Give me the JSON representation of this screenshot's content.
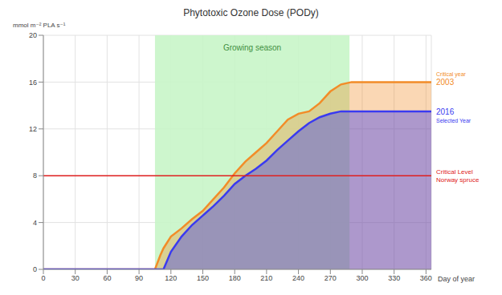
{
  "chart_data": {
    "type": "area",
    "title": "Phytotoxic Ozone Dose (PODy)",
    "y_label": "mmol m⁻² PLA s⁻¹",
    "x_label": "Day of year",
    "x": [
      0,
      100,
      105,
      110,
      113,
      120,
      130,
      140,
      150,
      160,
      170,
      180,
      190,
      200,
      210,
      220,
      230,
      240,
      250,
      260,
      270,
      280,
      290,
      365
    ],
    "series": [
      {
        "name": "2003",
        "label": "Critical year",
        "color": "#f28c28",
        "values": [
          0,
          0,
          0,
          1.2,
          1.8,
          2.8,
          3.5,
          4.3,
          5,
          6,
          7,
          8.2,
          9.2,
          10,
          10.8,
          11.8,
          12.8,
          13.3,
          13.5,
          14.2,
          15.2,
          15.8,
          16,
          16
        ]
      },
      {
        "name": "2016",
        "label": "Selected Year",
        "color": "#3a3af0",
        "values": [
          0,
          0,
          0,
          0,
          0,
          1.5,
          2.8,
          3.8,
          4.6,
          5.4,
          6.3,
          7.3,
          8,
          8.6,
          9.3,
          10.2,
          11,
          11.8,
          12.5,
          13,
          13.3,
          13.5,
          13.5,
          13.5
        ]
      }
    ],
    "xlim": [
      0,
      365
    ],
    "xticks": [
      0,
      30,
      60,
      90,
      120,
      150,
      180,
      210,
      240,
      270,
      300,
      330,
      360
    ],
    "ylim": [
      0,
      20
    ],
    "yticks": [
      0,
      4,
      8,
      12,
      16,
      20
    ],
    "grid": true,
    "reference_line": {
      "value": 8,
      "label": "Critical Level Norway spruce",
      "color": "#e02020"
    },
    "shaded_range": {
      "start": 105,
      "end": 288,
      "label": "Growing season",
      "color": "#c8f5c8"
    }
  }
}
